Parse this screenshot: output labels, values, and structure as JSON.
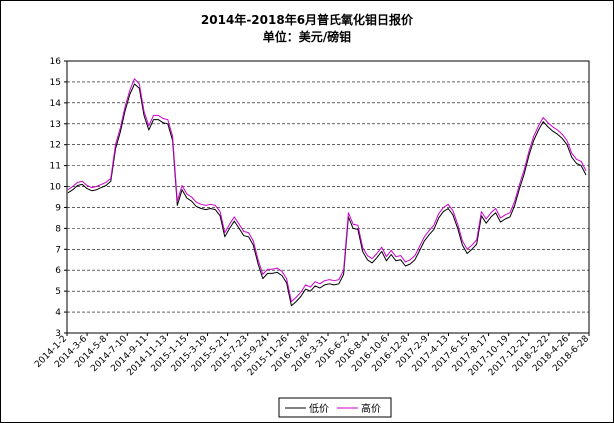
{
  "chart_data": {
    "type": "line",
    "title": "2014年-2018年6月普氏氧化钼日报价",
    "subtitle": "单位：美元/磅钼",
    "ylim": [
      3,
      16
    ],
    "yticks": [
      "3",
      "4",
      "5",
      "6",
      "7",
      "8",
      "9",
      "10",
      "11",
      "12",
      "13",
      "14",
      "15",
      "16"
    ],
    "x_tick_labels": [
      "2014-1-2",
      "2014-3-6",
      "2014-5-8",
      "2014-7-10",
      "2014-9-11",
      "2014-11-13",
      "2015-1-15",
      "2015-3-19",
      "2015-5-21",
      "2015-7-23",
      "2015-9-24",
      "2015-11-26",
      "2016-1-28",
      "2016-3-31",
      "2016-6-2",
      "2016-8-4",
      "2016-10-6",
      "2016-12-8",
      "2017-2-9",
      "2017-4-13",
      "2017-6-15",
      "2017-8-17",
      "2017-10-19",
      "2017-12-21",
      "2018-2-22",
      "2018-4-26",
      "2018-6-28"
    ],
    "grid": true,
    "legend_position": "bottom-right",
    "series": [
      {
        "name": "低价",
        "color": "#000000",
        "values": [
          9.7,
          9.85,
          10.05,
          10.1,
          9.9,
          9.8,
          9.85,
          9.95,
          10.05,
          10.25,
          11.8,
          12.6,
          13.6,
          14.4,
          14.9,
          14.7,
          13.4,
          12.7,
          13.2,
          13.2,
          13.05,
          13.0,
          12.2,
          9.1,
          9.85,
          9.45,
          9.3,
          9.05,
          8.95,
          8.9,
          8.95,
          8.9,
          8.6,
          7.6,
          8.0,
          8.35,
          8.0,
          7.65,
          7.6,
          7.2,
          6.3,
          5.6,
          5.85,
          5.85,
          5.9,
          5.75,
          5.4,
          4.3,
          4.5,
          4.75,
          5.1,
          5.0,
          5.25,
          5.15,
          5.3,
          5.35,
          5.3,
          5.35,
          5.8,
          8.55,
          8.0,
          7.95,
          6.9,
          6.5,
          6.35,
          6.6,
          6.9,
          6.45,
          6.75,
          6.45,
          6.5,
          6.2,
          6.3,
          6.5,
          6.95,
          7.4,
          7.7,
          7.95,
          8.5,
          8.8,
          8.95,
          8.65,
          8.0,
          7.2,
          6.8,
          7.0,
          7.25,
          8.6,
          8.25,
          8.55,
          8.75,
          8.3,
          8.45,
          8.55,
          9.1,
          9.9,
          10.6,
          11.5,
          12.2,
          12.7,
          13.1,
          12.85,
          12.65,
          12.5,
          12.3,
          12.0,
          11.4,
          11.1,
          11.0,
          10.55
        ]
      },
      {
        "name": "高价",
        "color": "#cc00cc",
        "values": [
          9.85,
          10.0,
          10.2,
          10.25,
          10.05,
          9.95,
          10.0,
          10.1,
          10.2,
          10.4,
          12.0,
          12.8,
          13.8,
          14.6,
          15.15,
          14.9,
          13.6,
          12.9,
          13.4,
          13.4,
          13.25,
          13.2,
          12.4,
          9.3,
          10.05,
          9.65,
          9.5,
          9.25,
          9.15,
          9.1,
          9.15,
          9.1,
          8.8,
          7.8,
          8.2,
          8.55,
          8.2,
          7.85,
          7.8,
          7.4,
          6.5,
          5.8,
          6.05,
          6.05,
          6.1,
          5.95,
          5.6,
          4.5,
          4.7,
          4.95,
          5.3,
          5.2,
          5.45,
          5.35,
          5.5,
          5.55,
          5.5,
          5.55,
          6.0,
          8.75,
          8.2,
          8.15,
          7.1,
          6.7,
          6.55,
          6.8,
          7.1,
          6.65,
          6.95,
          6.65,
          6.7,
          6.4,
          6.5,
          6.7,
          7.15,
          7.6,
          7.9,
          8.15,
          8.7,
          9.0,
          9.15,
          8.85,
          8.2,
          7.4,
          7.0,
          7.2,
          7.45,
          8.8,
          8.45,
          8.75,
          8.95,
          8.5,
          8.65,
          8.75,
          9.3,
          10.1,
          10.8,
          11.7,
          12.4,
          12.9,
          13.3,
          13.05,
          12.85,
          12.7,
          12.5,
          12.2,
          11.6,
          11.3,
          11.2,
          10.75
        ]
      }
    ]
  }
}
